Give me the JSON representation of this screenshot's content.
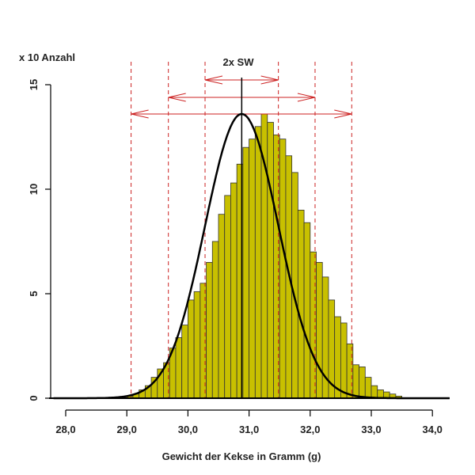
{
  "chart_data": {
    "type": "bar",
    "ylabel": "x 10 Anzahl",
    "xlabel": "Gewicht der Kekse in Gramm (g)",
    "annotation": "2x SW",
    "x_ticks": [
      "28,0",
      "29,0",
      "30,0",
      "31,0",
      "32,0",
      "33,0",
      "34,0"
    ],
    "y_ticks": [
      "0",
      "5",
      "10",
      "15"
    ],
    "xlim": [
      27.9,
      34.3
    ],
    "ylim": [
      0,
      15
    ],
    "mean": 30.88,
    "sd": 0.6,
    "bin_width": 0.1,
    "bin_start": 29.0,
    "values": [
      0.1,
      0.2,
      0.4,
      0.6,
      1.0,
      1.4,
      1.7,
      2.4,
      2.9,
      3.5,
      4.7,
      5.1,
      5.5,
      6.5,
      7.5,
      8.8,
      9.7,
      10.3,
      11.2,
      12.0,
      12.4,
      13.0,
      13.6,
      13.2,
      12.6,
      12.4,
      11.6,
      10.8,
      9.0,
      8.4,
      7.0,
      6.5,
      5.8,
      4.7,
      3.9,
      3.6,
      2.6,
      1.6,
      1.5,
      1.0,
      0.6,
      0.4,
      0.3,
      0.2,
      0.1
    ],
    "sd_marks": [
      29.07,
      29.68,
      30.28,
      31.48,
      32.08,
      32.68
    ],
    "colors": {
      "bar_fill": "#c8c000",
      "bar_stroke": "#333333",
      "curve": "#000000",
      "sd_lines": "#cc2222"
    }
  }
}
